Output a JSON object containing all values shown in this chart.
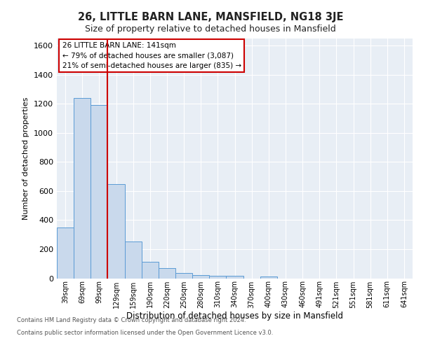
{
  "title_line1": "26, LITTLE BARN LANE, MANSFIELD, NG18 3JE",
  "title_line2": "Size of property relative to detached houses in Mansfield",
  "xlabel": "Distribution of detached houses by size in Mansfield",
  "ylabel": "Number of detached properties",
  "categories": [
    "39sqm",
    "69sqm",
    "99sqm",
    "129sqm",
    "159sqm",
    "190sqm",
    "220sqm",
    "250sqm",
    "280sqm",
    "310sqm",
    "340sqm",
    "370sqm",
    "400sqm",
    "430sqm",
    "460sqm",
    "491sqm",
    "521sqm",
    "551sqm",
    "581sqm",
    "611sqm",
    "641sqm"
  ],
  "values": [
    350,
    1240,
    1190,
    650,
    255,
    115,
    70,
    35,
    20,
    15,
    15,
    0,
    10,
    0,
    0,
    0,
    0,
    0,
    0,
    0,
    0
  ],
  "bar_color": "#c9d9ec",
  "bar_edge_color": "#5b9bd5",
  "vline_color": "#cc0000",
  "vline_pos": 2.5,
  "ylim": [
    0,
    1650
  ],
  "yticks": [
    0,
    200,
    400,
    600,
    800,
    1000,
    1200,
    1400,
    1600
  ],
  "annotation_title": "26 LITTLE BARN LANE: 141sqm",
  "annotation_line1": "← 79% of detached houses are smaller (3,087)",
  "annotation_line2": "21% of semi-detached houses are larger (835) →",
  "annotation_box_color": "#ffffff",
  "annotation_box_edge": "#cc0000",
  "footer_line1": "Contains HM Land Registry data © Crown copyright and database right 2024.",
  "footer_line2": "Contains public sector information licensed under the Open Government Licence v3.0.",
  "plot_bg_color": "#e8eef5",
  "grid_color": "#ffffff",
  "fig_bg_color": "#ffffff"
}
